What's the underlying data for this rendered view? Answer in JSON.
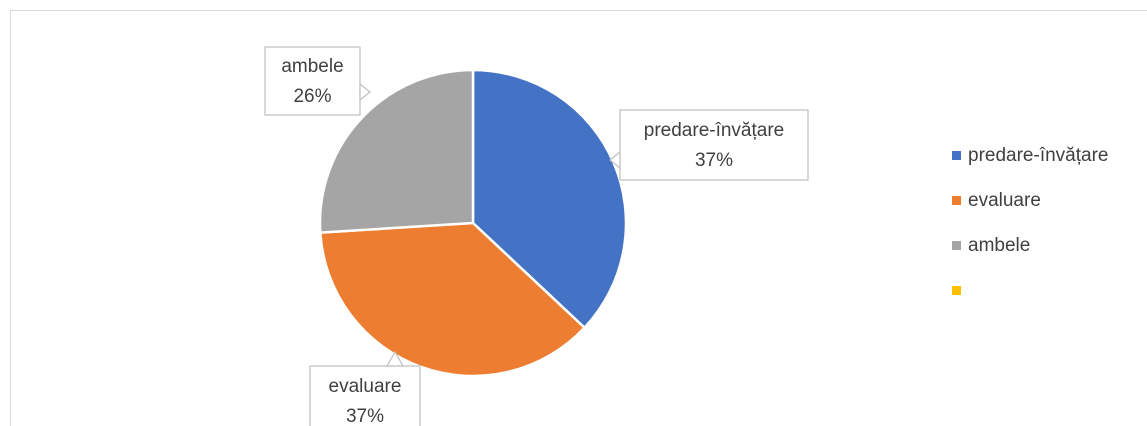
{
  "chart_data": {
    "type": "pie",
    "categories": [
      "predare-învățare",
      "evaluare",
      "ambele",
      null
    ],
    "values": [
      37,
      37,
      26,
      0
    ],
    "value_labels": [
      "37%",
      "37%",
      "26%",
      null
    ],
    "colors": [
      "#4472c4",
      "#ed7d31",
      "#a5a5a5",
      "#ffc000"
    ],
    "legend": "right"
  }
}
